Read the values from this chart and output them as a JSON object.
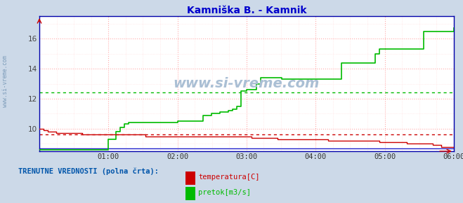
{
  "title": "Kamniška B. - Kamnik",
  "title_color": "#0000cc",
  "outer_bg": "#ccd9e8",
  "plot_bg": "#ffffff",
  "grid_color_major": "#ffaaaa",
  "grid_color_minor": "#ffdddd",
  "spine_color": "#0000aa",
  "xlim": [
    0,
    390
  ],
  "ylim": [
    8.5,
    17.5
  ],
  "yticks": [
    10,
    12,
    14,
    16
  ],
  "xtick_labels": [
    "01:00",
    "02:00",
    "03:00",
    "04:00",
    "05:00",
    "06:00"
  ],
  "xtick_positions": [
    65,
    130,
    195,
    260,
    325,
    390
  ],
  "watermark": "www.si-vreme.com",
  "watermark_color": "#aabfd4",
  "sidebar_text": "www.si-vreme.com",
  "sidebar_color": "#7a9ab8",
  "legend_title": "TRENUTNE VREDNOSTI (polna črta):",
  "legend_title_color": "#0055aa",
  "red_dashed_y": 9.6,
  "green_dashed_y": 12.4,
  "temp_color": "#cc0000",
  "flow_color": "#00bb00",
  "height_color": "#2222cc",
  "temp_data_x": [
    0,
    4,
    8,
    12,
    16,
    20,
    24,
    28,
    32,
    36,
    40,
    44,
    48,
    52,
    56,
    60,
    65,
    68,
    72,
    76,
    80,
    84,
    88,
    92,
    96,
    100,
    104,
    108,
    112,
    116,
    120,
    124,
    130,
    134,
    138,
    142,
    146,
    150,
    154,
    158,
    162,
    166,
    170,
    174,
    178,
    182,
    186,
    190,
    195,
    200,
    204,
    208,
    212,
    216,
    220,
    224,
    228,
    232,
    236,
    240,
    244,
    248,
    252,
    256,
    260,
    264,
    268,
    272,
    276,
    280,
    284,
    288,
    292,
    296,
    300,
    304,
    308,
    312,
    316,
    320,
    325,
    330,
    334,
    338,
    342,
    346,
    350,
    354,
    358,
    362,
    366,
    370,
    374,
    378,
    382,
    386,
    390
  ],
  "temp_data_y": [
    10.0,
    9.9,
    9.8,
    9.8,
    9.7,
    9.7,
    9.7,
    9.7,
    9.7,
    9.7,
    9.6,
    9.6,
    9.6,
    9.6,
    9.6,
    9.6,
    9.6,
    9.6,
    9.6,
    9.6,
    9.6,
    9.6,
    9.6,
    9.6,
    9.6,
    9.5,
    9.5,
    9.5,
    9.5,
    9.5,
    9.5,
    9.5,
    9.5,
    9.5,
    9.5,
    9.5,
    9.5,
    9.5,
    9.5,
    9.5,
    9.5,
    9.5,
    9.5,
    9.5,
    9.5,
    9.5,
    9.5,
    9.5,
    9.5,
    9.4,
    9.4,
    9.4,
    9.4,
    9.4,
    9.4,
    9.3,
    9.3,
    9.3,
    9.3,
    9.3,
    9.3,
    9.3,
    9.3,
    9.3,
    9.3,
    9.3,
    9.3,
    9.2,
    9.2,
    9.2,
    9.2,
    9.2,
    9.2,
    9.2,
    9.2,
    9.2,
    9.2,
    9.2,
    9.2,
    9.1,
    9.1,
    9.1,
    9.1,
    9.1,
    9.1,
    9.0,
    9.0,
    9.0,
    9.0,
    9.0,
    9.0,
    8.9,
    8.9,
    8.8,
    8.8,
    8.8,
    8.8
  ],
  "flow_data_x": [
    0,
    4,
    8,
    12,
    16,
    20,
    24,
    28,
    32,
    36,
    40,
    44,
    48,
    52,
    56,
    60,
    65,
    68,
    72,
    76,
    80,
    84,
    88,
    92,
    96,
    100,
    104,
    108,
    112,
    116,
    120,
    124,
    130,
    134,
    138,
    142,
    146,
    150,
    154,
    158,
    162,
    166,
    170,
    174,
    178,
    182,
    186,
    190,
    195,
    200,
    204,
    208,
    212,
    216,
    220,
    224,
    228,
    232,
    236,
    240,
    244,
    248,
    252,
    256,
    260,
    264,
    268,
    272,
    276,
    280,
    284,
    288,
    292,
    296,
    300,
    304,
    308,
    312,
    316,
    320,
    325,
    330,
    334,
    338,
    342,
    346,
    350,
    354,
    358,
    362,
    366,
    370,
    374,
    378,
    382,
    386,
    390
  ],
  "flow_data_y": [
    8.6,
    8.6,
    8.6,
    8.6,
    8.6,
    8.6,
    8.6,
    8.6,
    8.6,
    8.6,
    8.6,
    8.6,
    8.6,
    8.6,
    8.6,
    8.6,
    9.3,
    9.3,
    9.8,
    10.1,
    10.3,
    10.4,
    10.4,
    10.4,
    10.4,
    10.4,
    10.4,
    10.4,
    10.4,
    10.4,
    10.4,
    10.4,
    10.5,
    10.5,
    10.5,
    10.5,
    10.5,
    10.5,
    10.9,
    10.9,
    11.0,
    11.0,
    11.1,
    11.1,
    11.2,
    11.3,
    11.5,
    12.5,
    12.6,
    12.6,
    13.0,
    13.4,
    13.4,
    13.4,
    13.4,
    13.4,
    13.3,
    13.3,
    13.3,
    13.3,
    13.3,
    13.3,
    13.3,
    13.3,
    13.3,
    13.3,
    13.3,
    13.3,
    13.3,
    13.3,
    14.4,
    14.4,
    14.4,
    14.4,
    14.4,
    14.4,
    14.4,
    14.4,
    15.0,
    15.3,
    15.3,
    15.3,
    15.3,
    15.3,
    15.3,
    15.3,
    15.3,
    15.3,
    15.3,
    16.5,
    16.5,
    16.5,
    16.5,
    16.5,
    16.5,
    16.5,
    16.7
  ],
  "height_line_y": 8.7
}
